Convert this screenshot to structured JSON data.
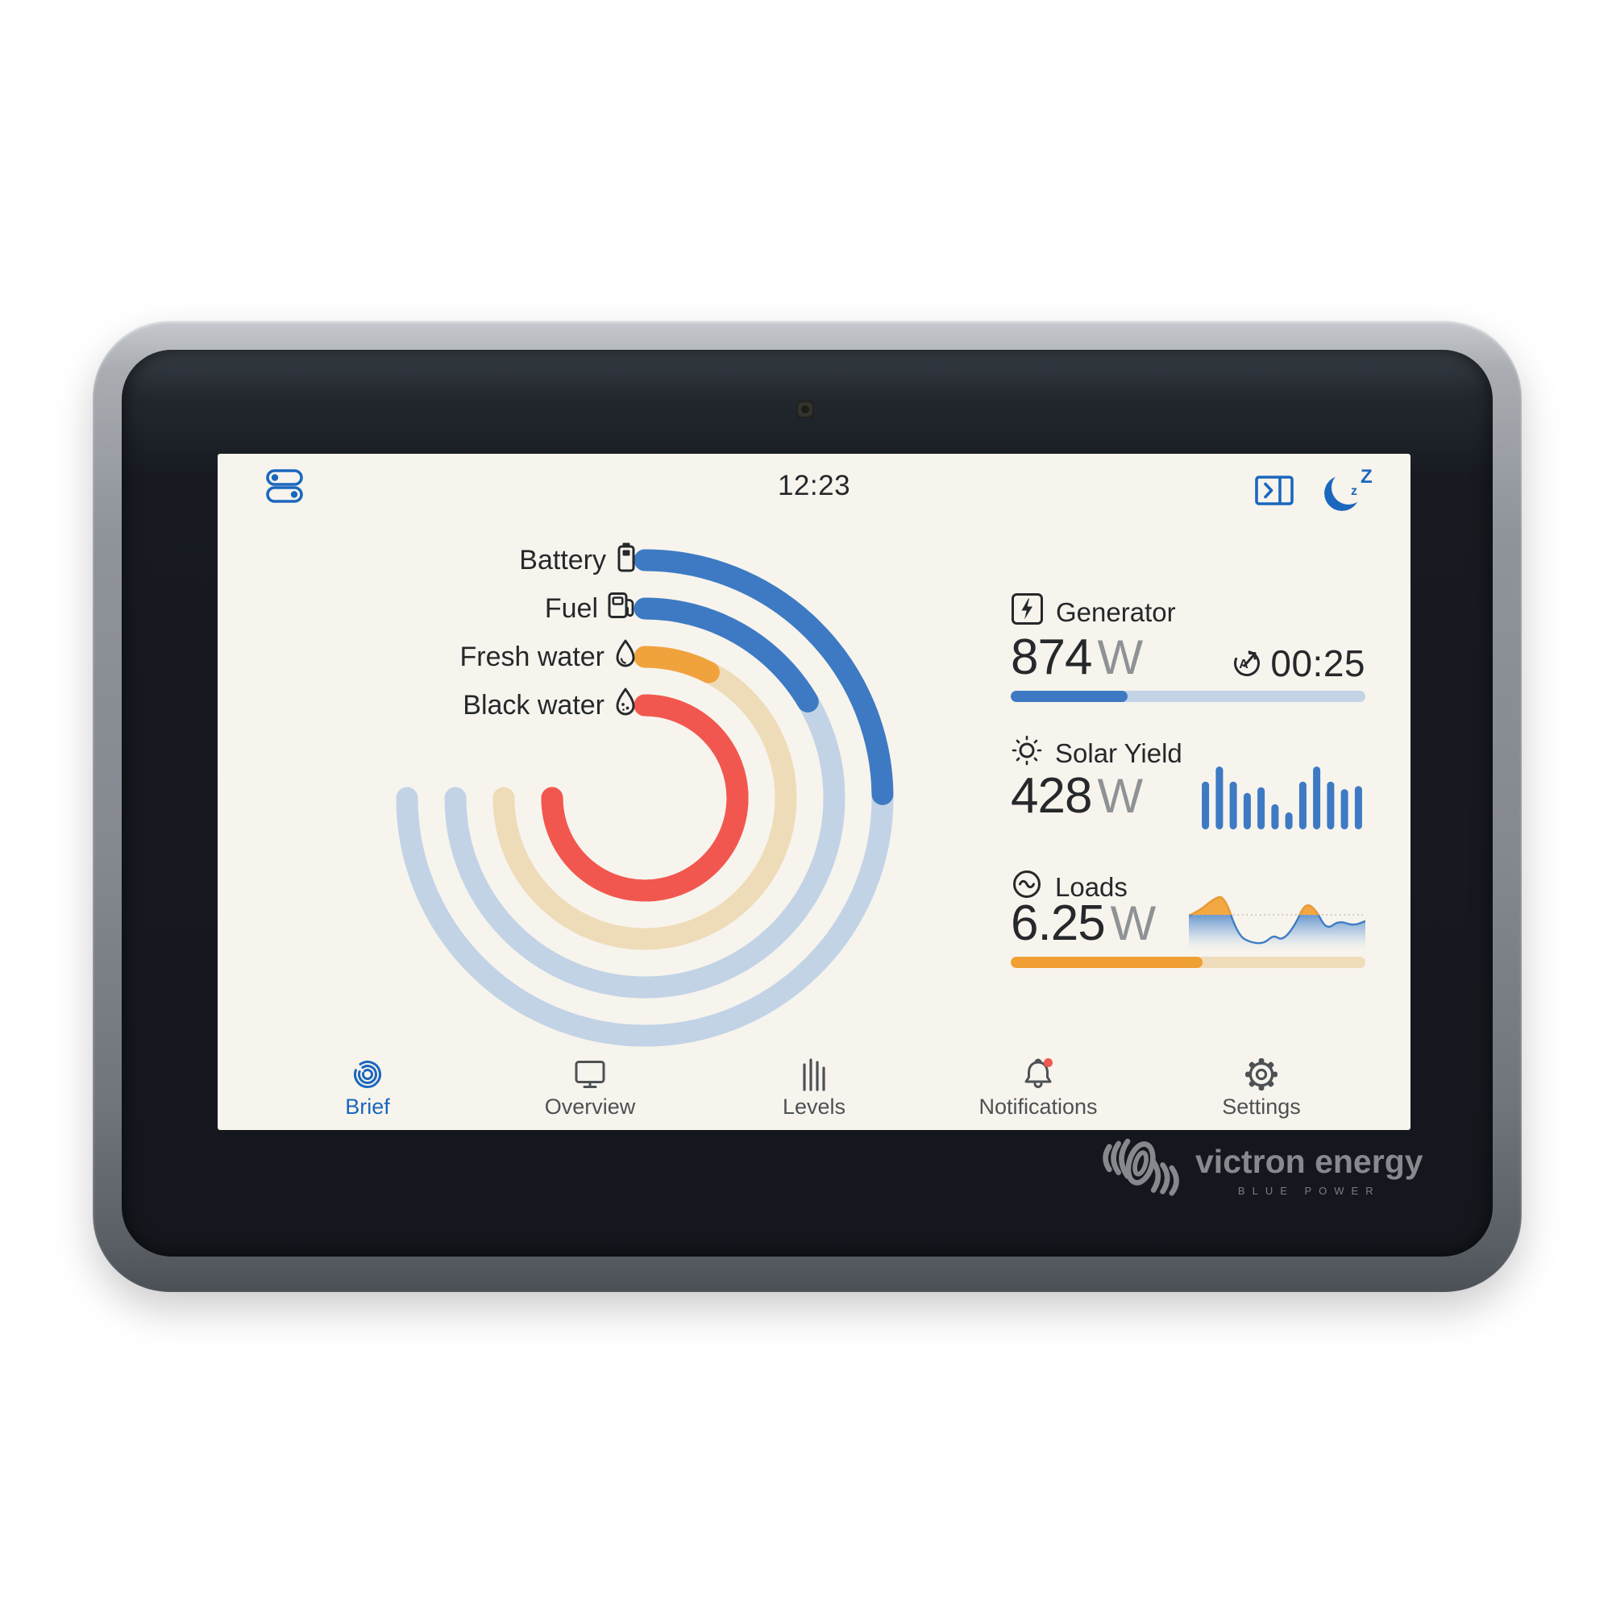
{
  "colors": {
    "accent_blue": "#1b67be",
    "arc_blue": "#3d7ac3",
    "arc_blue_track": "#c2d3e6",
    "arc_orange": "#f0a23c",
    "arc_orange_track": "#eedcb9",
    "arc_red": "#f2574f",
    "text_dark": "#26282b",
    "unit_gray": "#8f9295",
    "nav_gray": "#4e5154",
    "notification_red": "#ee5952",
    "screen_bg": "#f7f4ed"
  },
  "topbar": {
    "time": "12:23",
    "menu_icon": "menu-toggles-icon",
    "remote_icon": "panel-expand-icon",
    "sleep_icon": "sleep-moon-icon"
  },
  "gauges": {
    "track_sweep_deg": 270,
    "stroke_width": 27,
    "items": [
      {
        "label": "Battery",
        "icon": "battery-icon",
        "fraction": 0.33,
        "fill": "#3d7ac3",
        "track": "#c2d3e6",
        "radius": 295
      },
      {
        "label": "Fuel",
        "icon": "fuel-pump-icon",
        "fraction": 0.22,
        "fill": "#3d7ac3",
        "track": "#c2d3e6",
        "radius": 235
      },
      {
        "label": "Fresh water",
        "icon": "fresh-water-drop-icon",
        "fraction": 0.1,
        "fill": "#f0a23c",
        "track": "#eedcb9",
        "radius": 175
      },
      {
        "label": "Black water",
        "icon": "black-water-drop-icon",
        "fraction": 1.0,
        "fill": "#f2574f",
        "track": "#f2574f",
        "radius": 115
      }
    ]
  },
  "panels": {
    "generator": {
      "icon": "generator-icon",
      "label": "Generator",
      "value": "874",
      "unit": "W",
      "timer": "00:25",
      "timer_icon": "autostart-timer-icon",
      "progress": 0.33,
      "bar_fill": "#3d7ac3",
      "bar_track": "#c2d3e6"
    },
    "solar": {
      "icon": "sun-icon",
      "label": "Solar Yield",
      "value": "428",
      "unit": "W",
      "bar_color": "#3d7ac3",
      "bars": [
        0.76,
        1.0,
        0.76,
        0.58,
        0.67,
        0.4,
        0.27,
        0.76,
        1.0,
        0.76,
        0.64,
        0.69
      ]
    },
    "loads": {
      "icon": "ac-loads-icon",
      "label": "Loads",
      "value": "6.25",
      "unit": "W",
      "progress": 0.54,
      "bar_fill": "#f0a033",
      "bar_track": "#f0dcba",
      "threshold": 0.365,
      "wave_points": [
        [
          0,
          0.38
        ],
        [
          0.06,
          0.3
        ],
        [
          0.14,
          0.1
        ],
        [
          0.2,
          0.04
        ],
        [
          0.28,
          0.72
        ],
        [
          0.36,
          0.84
        ],
        [
          0.43,
          0.84
        ],
        [
          0.48,
          0.7
        ],
        [
          0.53,
          0.8
        ],
        [
          0.6,
          0.55
        ],
        [
          0.66,
          0.16
        ],
        [
          0.72,
          0.28
        ],
        [
          0.78,
          0.62
        ],
        [
          0.85,
          0.46
        ],
        [
          0.93,
          0.55
        ],
        [
          1.0,
          0.47
        ]
      ]
    }
  },
  "nav": {
    "items": [
      {
        "label": "Brief",
        "icon": "brief-icon",
        "active": true,
        "badge": false
      },
      {
        "label": "Overview",
        "icon": "overview-icon",
        "active": false,
        "badge": false
      },
      {
        "label": "Levels",
        "icon": "levels-icon",
        "active": false,
        "badge": false
      },
      {
        "label": "Notifications",
        "icon": "notifications-bell-icon",
        "active": false,
        "badge": true
      },
      {
        "label": "Settings",
        "icon": "settings-gear-icon",
        "active": false,
        "badge": false
      }
    ]
  },
  "branding": {
    "name": "victron energy",
    "tagline": "BLUE POWER"
  }
}
